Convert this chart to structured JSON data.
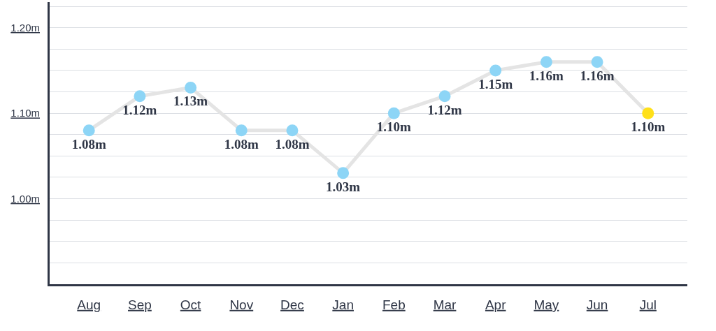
{
  "chart_data": {
    "type": "line",
    "categories": [
      "Aug",
      "Sep",
      "Oct",
      "Nov",
      "Dec",
      "Jan",
      "Feb",
      "Mar",
      "Apr",
      "May",
      "Jun",
      "Jul"
    ],
    "series": [
      {
        "color": "#e4e4e4",
        "colors": [
          "#8dd5f6",
          "#8dd5f6",
          "#8dd5f6",
          "#8dd5f6",
          "#8dd5f6",
          "#8dd5f6",
          "#8dd5f6",
          "#8dd5f6",
          "#8dd5f6",
          "#8dd5f6",
          "#8dd5f6",
          "#ffe01a"
        ],
        "values": [
          1.08,
          1.12,
          1.13,
          1.08,
          1.08,
          1.03,
          1.1,
          1.12,
          1.15,
          1.16,
          1.16,
          1.1
        ],
        "value_labels": [
          "1.08m",
          "1.12m",
          "1.13m",
          "1.08m",
          "1.08m",
          "1.03m",
          "1.10m",
          "1.12m",
          "1.15m",
          "1.16m",
          "1.16m",
          "1.10m"
        ]
      }
    ],
    "ylim": [
      0.9,
      1.23
    ],
    "yticks": [
      {
        "value": 0.925,
        "label": null
      },
      {
        "value": 0.95,
        "label": null
      },
      {
        "value": 0.975,
        "label": null
      },
      {
        "value": 1.0,
        "label": "1.00m"
      },
      {
        "value": 1.025,
        "label": null
      },
      {
        "value": 1.05,
        "label": null
      },
      {
        "value": 1.075,
        "label": null
      },
      {
        "value": 1.1,
        "label": "1.10m"
      },
      {
        "value": 1.125,
        "label": null
      },
      {
        "value": 1.15,
        "label": null
      },
      {
        "value": 1.175,
        "label": null
      },
      {
        "value": 1.2,
        "label": "1.20m"
      },
      {
        "value": 1.225,
        "label": null
      }
    ],
    "grid": "y",
    "marker": "circle",
    "line_style": "solid"
  }
}
